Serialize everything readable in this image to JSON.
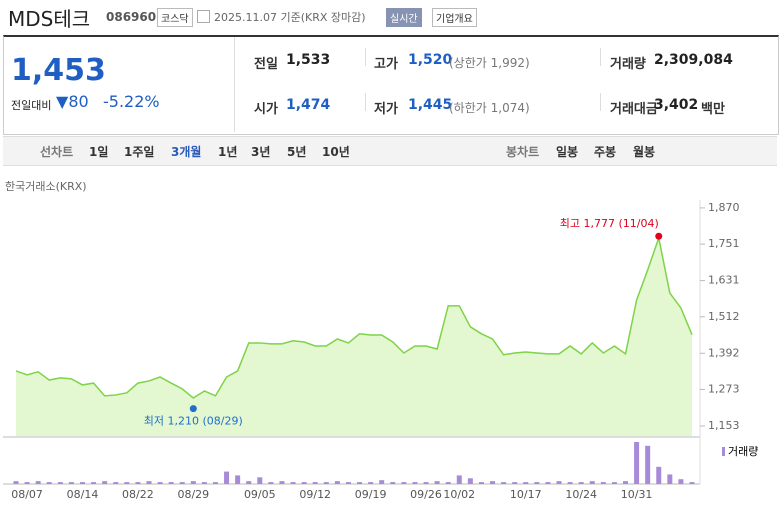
{
  "header": {
    "name": "MDS테크",
    "code": "086960",
    "market": "코스닥",
    "as_of": "2025.11.07 기준(KRX 장마감)",
    "realtime": "실시간",
    "company_info": "기업개요"
  },
  "quote": {
    "price": "1,453",
    "change_label": "전일대비",
    "change": "80",
    "change_rate": "-5.22%"
  },
  "stats": [
    {
      "label": "전일",
      "value": "1,533"
    },
    {
      "label": "고가",
      "value": "1,520",
      "note": "(상한가 1,992)"
    },
    {
      "label": "거래량",
      "value": "2,309,084"
    },
    {
      "label": "시가",
      "value": "1,474"
    },
    {
      "label": "저가",
      "value": "1,445",
      "note": "(하한가 1,074)"
    },
    {
      "label": "거래대금",
      "value": "3,402",
      "unit": "백만"
    }
  ],
  "tabs": {
    "line_label": "선차트",
    "line_periods": [
      "1일",
      "1주일",
      "3개월",
      "1년",
      "3년",
      "5년",
      "10년"
    ],
    "candle_label": "봉차트",
    "candle_periods": [
      "일봉",
      "주봉",
      "월봉"
    ]
  },
  "chart_data": {
    "type": "area",
    "source": "한국거래소(KRX)",
    "color": "#7ed348",
    "categories": [
      null,
      "08/07",
      null,
      null,
      null,
      null,
      "08/14",
      null,
      null,
      null,
      null,
      "08/22",
      null,
      null,
      null,
      null,
      "08/29",
      null,
      null,
      null,
      null,
      null,
      "09/05",
      null,
      null,
      null,
      null,
      "09/12",
      null,
      null,
      null,
      null,
      "09/19",
      null,
      null,
      null,
      null,
      "09/26",
      null,
      null,
      "10/02",
      null,
      null,
      null,
      null,
      null,
      "10/17",
      null,
      null,
      null,
      null,
      "10/24",
      null,
      null,
      null,
      null,
      "10/31",
      null,
      null,
      null,
      null,
      null
    ],
    "values": [
      1334,
      1321,
      1331,
      1304,
      1311,
      1308,
      1288,
      1294,
      1252,
      1255,
      1262,
      1294,
      1301,
      1314,
      1294,
      1275,
      1245,
      1268,
      1252,
      1314,
      1334,
      1426,
      1426,
      1423,
      1423,
      1433,
      1429,
      1416,
      1416,
      1439,
      1426,
      1456,
      1452,
      1452,
      1429,
      1393,
      1416,
      1416,
      1406,
      1548,
      1548,
      1479,
      1456,
      1439,
      1387,
      1393,
      1396,
      1393,
      1390,
      1390,
      1416,
      1390,
      1426,
      1393,
      1416,
      1390,
      1567,
      1666,
      1771,
      1590,
      1541,
      1453
    ],
    "volume": {
      "name": "거래량",
      "color": "#a78ad8",
      "values": [
        3,
        2,
        3,
        2,
        2,
        2,
        2,
        2,
        3,
        2,
        2,
        2,
        3,
        2,
        2,
        2,
        3,
        2,
        2,
        13,
        9,
        3,
        7,
        2,
        3,
        2,
        2,
        2,
        2,
        3,
        2,
        2,
        2,
        4,
        2,
        2,
        2,
        2,
        3,
        2,
        9,
        6,
        2,
        3,
        2,
        2,
        2,
        2,
        2,
        3,
        2,
        2,
        3,
        2,
        2,
        3,
        44,
        40,
        18,
        10,
        5,
        2
      ]
    },
    "ylim": [
      1120,
      1896
    ],
    "yticks": [
      {
        "value": 1153,
        "label": "1,153"
      },
      {
        "value": 1273,
        "label": "1,273"
      },
      {
        "value": 1392,
        "label": "1,392"
      },
      {
        "value": 1512,
        "label": "1,512"
      },
      {
        "value": 1631,
        "label": "1,631"
      },
      {
        "value": 1751,
        "label": "1,751"
      },
      {
        "value": 1870,
        "label": "1,870"
      }
    ],
    "high": {
      "text": "최고 1,777 (11/04)",
      "value": 1777,
      "color": "#e0001a"
    },
    "low": {
      "text": "최저 1,210 (08/29)",
      "value": 1210,
      "color": "#1f6fd1"
    }
  }
}
